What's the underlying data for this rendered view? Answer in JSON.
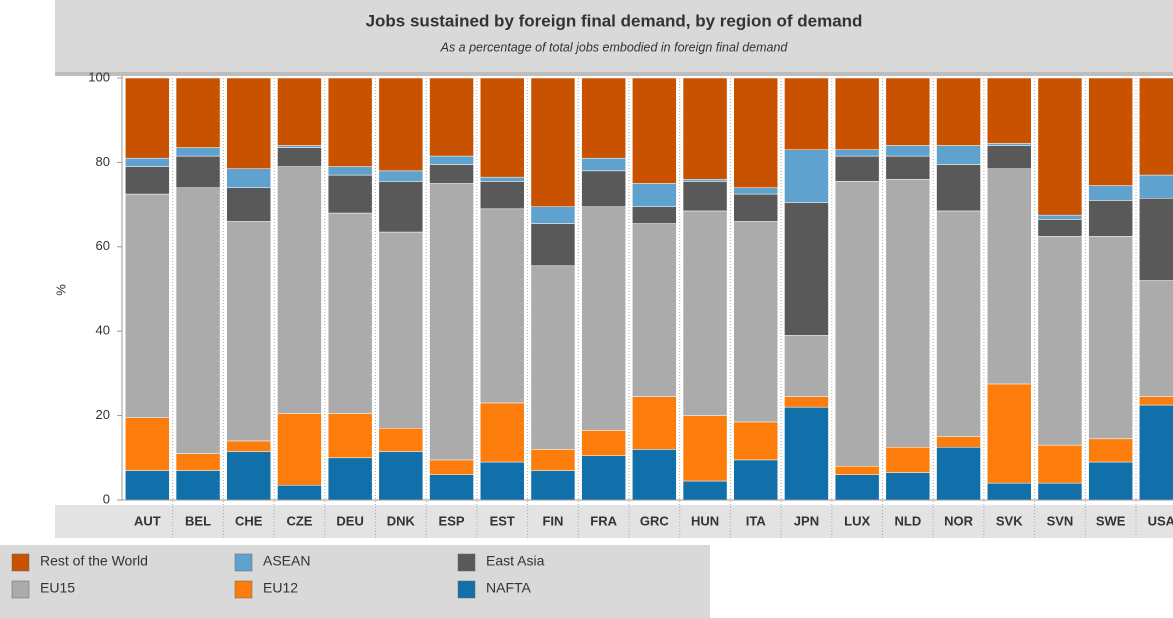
{
  "chart_data": {
    "type": "stacked_bar",
    "title": "Jobs sustained by foreign final demand, by region of demand",
    "subtitle": "As a percentage of total jobs embodied in foreign final demand",
    "y_label": "%",
    "categories": [
      "AUT",
      "BEL",
      "CHE",
      "CZE",
      "DEU",
      "DNK",
      "ESP",
      "EST",
      "FIN",
      "FRA",
      "GRC",
      "HUN",
      "ITA",
      "JPN",
      "LUX",
      "NLD",
      "NOR",
      "SVK",
      "SVN",
      "SWE",
      "USA"
    ],
    "ylim": [
      0,
      100
    ],
    "yticks": [
      0,
      20,
      40,
      60,
      80,
      100
    ],
    "series": [
      {
        "name": "NAFTA",
        "color": "#1170aa",
        "values": [
          7,
          7,
          11.5,
          3.5,
          10,
          11.5,
          6,
          9,
          7,
          10.5,
          12,
          4.5,
          9.5,
          22,
          6,
          6.5,
          12.5,
          4,
          4,
          9,
          22.5
        ]
      },
      {
        "name": "EU12",
        "color": "#fc7d0b",
        "values": [
          12.5,
          4,
          2.5,
          17,
          10.5,
          5.5,
          3.5,
          14,
          5,
          6,
          12.5,
          15.5,
          9,
          2.5,
          2,
          6,
          2.5,
          23.5,
          9,
          5.5,
          2
        ]
      },
      {
        "name": "EU15",
        "color": "#ababab",
        "values": [
          53,
          63,
          52,
          58.5,
          47.5,
          46.5,
          65.5,
          46,
          43.5,
          53,
          41,
          48.5,
          47.5,
          14.5,
          67.5,
          63.5,
          53.5,
          51,
          49.5,
          48,
          27.5
        ]
      },
      {
        "name": "East Asia",
        "color": "#595959",
        "values": [
          6.5,
          7.5,
          8,
          4.5,
          9,
          12,
          4.5,
          6.5,
          10,
          8.5,
          4,
          7,
          6.5,
          31.5,
          6,
          5.5,
          11,
          5.5,
          4,
          8.5,
          19.5
        ]
      },
      {
        "name": "ASEAN",
        "color": "#5fa2ce",
        "values": [
          2,
          2,
          4.5,
          0.5,
          2,
          2.5,
          2,
          1,
          4,
          3,
          5.5,
          0.5,
          1.5,
          12.5,
          1.5,
          2.5,
          4.5,
          0.5,
          1,
          3.5,
          5.5
        ]
      },
      {
        "name": "Rest of the World",
        "color": "#c85200",
        "values": [
          19,
          16.5,
          21.5,
          16,
          21,
          22,
          18.5,
          23.5,
          30.5,
          19,
          25,
          24,
          26,
          17,
          17,
          16,
          16,
          15.5,
          32.5,
          25.5,
          23
        ]
      }
    ]
  }
}
